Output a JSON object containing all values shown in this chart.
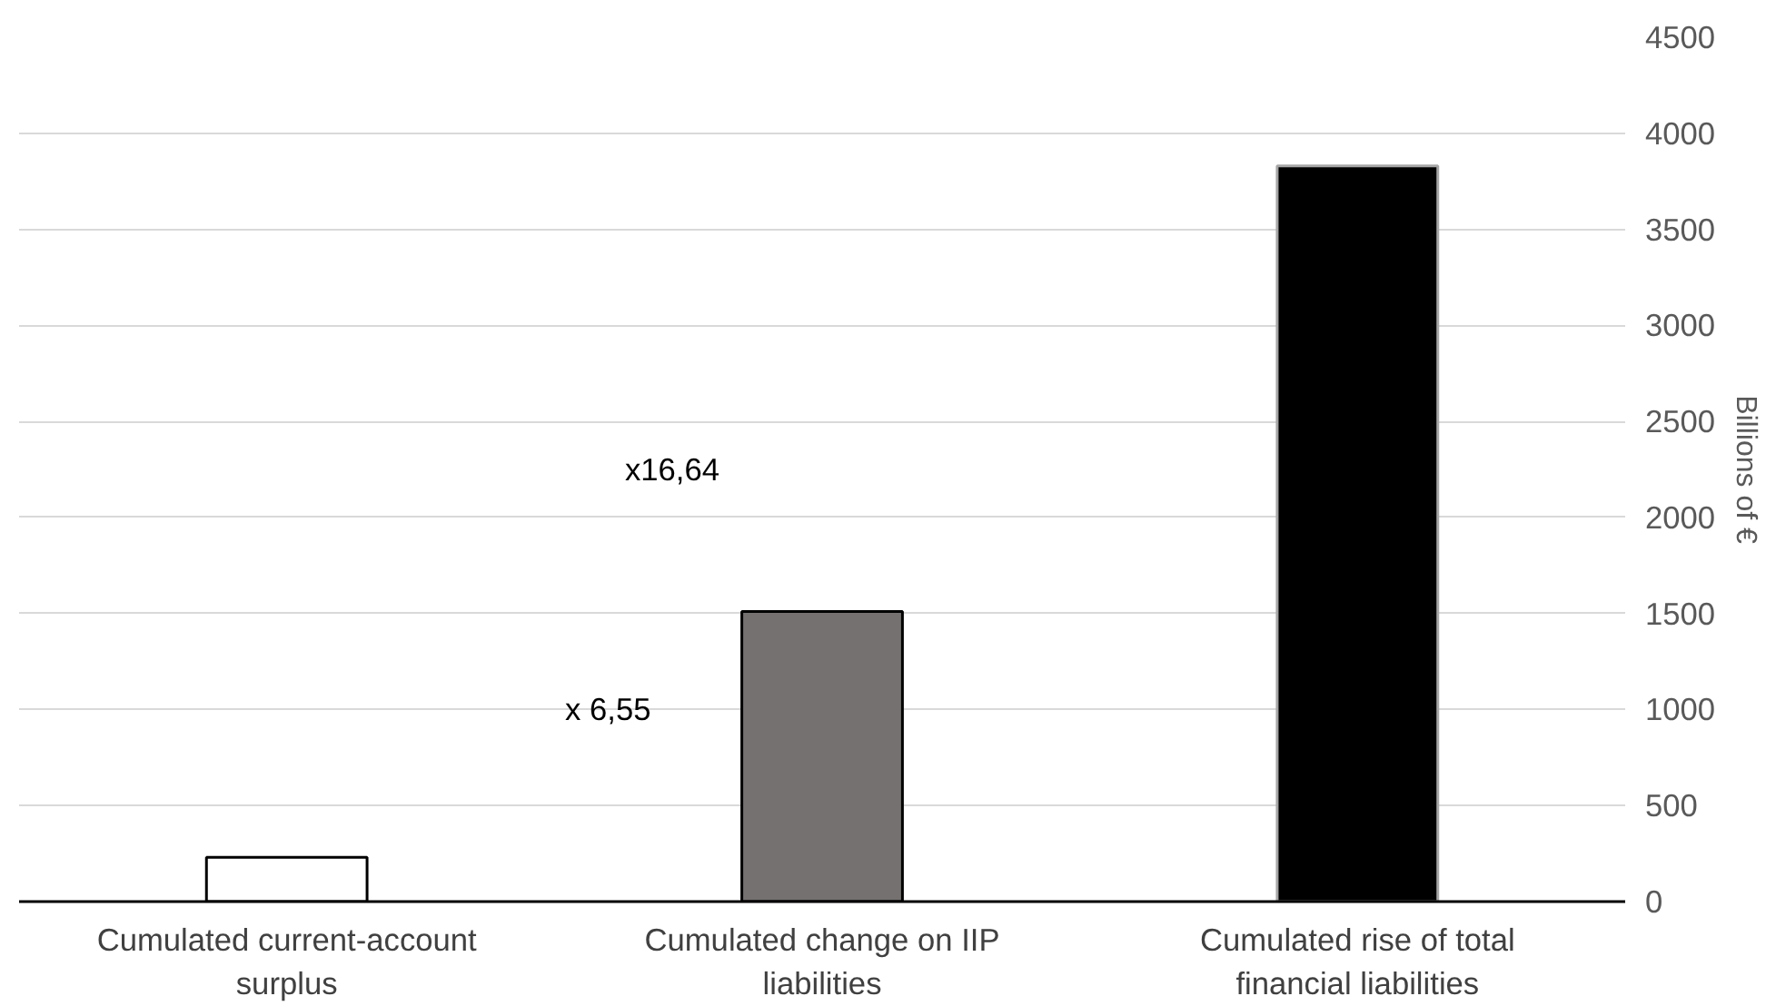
{
  "chart_data": {
    "type": "bar",
    "categories": [
      "Cumulated current-account surplus",
      "Cumulated change on IIP liabilities",
      "Cumulated rise of total financial liabilities"
    ],
    "values": [
      230,
      1510,
      3830
    ],
    "colors": [
      "#ffffff",
      "#767171",
      "#000000"
    ],
    "ylabel": "Billions of €",
    "ylim": [
      0,
      4500
    ],
    "yticks": [
      0,
      500,
      1000,
      1500,
      2000,
      2500,
      3000,
      3500,
      4000,
      4500
    ],
    "grid": "y",
    "annotations": [
      "x 6,55",
      "x16,64"
    ]
  }
}
